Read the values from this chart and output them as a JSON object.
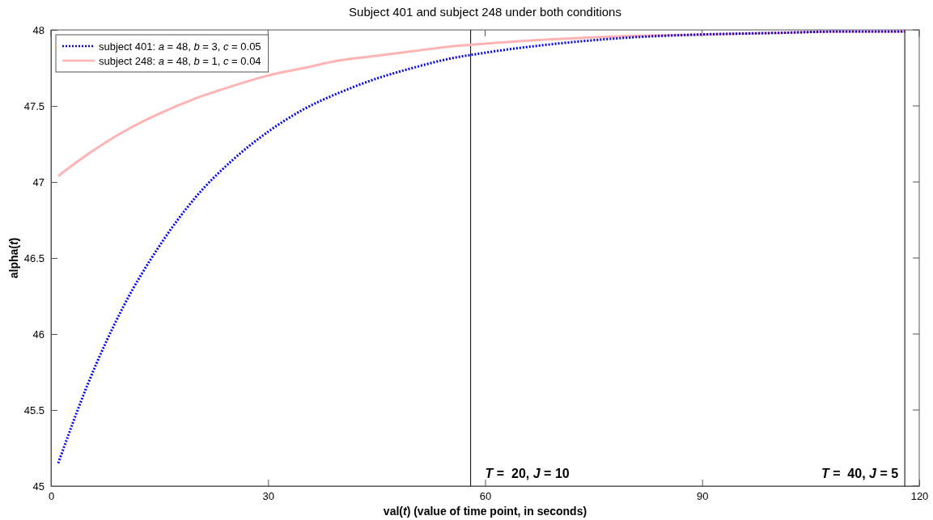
{
  "chart_data": {
    "type": "line",
    "title": "Subject 401 and subject 248 under both conditions",
    "xlabel": "val(t) (value of time point, in seconds)",
    "ylabel": "alpha(t)",
    "xlim": [
      0,
      120
    ],
    "xticks": [
      0,
      30,
      60,
      90,
      120
    ],
    "ylim": [
      45,
      48
    ],
    "yticks": [
      45,
      45.5,
      46,
      46.5,
      47,
      47.5,
      48
    ],
    "grid": false,
    "legend": "top left",
    "marker": "none",
    "ref_lines": [
      {
        "axis": "x",
        "value": 58,
        "color": "#000000"
      },
      {
        "axis": "x",
        "value": 118,
        "color": "#000000"
      }
    ],
    "annotations": [
      "T =  20, J = 10",
      "T =  40, J = 5"
    ],
    "series": [
      {
        "name": "subject 401: a = 48, b = 3, c = 0.05",
        "color": "#0000ff",
        "line_style": "dotted",
        "x": [
          1,
          5,
          10,
          15,
          20,
          25,
          30,
          35,
          40,
          45,
          50,
          55,
          60,
          70,
          80,
          90,
          100,
          110,
          118
        ],
        "values": [
          45.15,
          45.66,
          46.18,
          46.58,
          46.9,
          47.14,
          47.33,
          47.48,
          47.59,
          47.68,
          47.75,
          47.81,
          47.85,
          47.91,
          47.95,
          47.97,
          47.98,
          47.99,
          47.99
        ]
      },
      {
        "name": "subject 248: a = 48, b = 1, c = 0.04",
        "color": "#ffb3b3",
        "line_style": "solid",
        "x": [
          1,
          5,
          10,
          15,
          20,
          25,
          30,
          35,
          40,
          45,
          50,
          55,
          60,
          70,
          80,
          90,
          100,
          110,
          118
        ],
        "values": [
          47.04,
          47.18,
          47.33,
          47.45,
          47.55,
          47.63,
          47.7,
          47.75,
          47.8,
          47.83,
          47.86,
          47.89,
          47.91,
          47.94,
          47.96,
          47.97,
          47.98,
          47.99,
          47.99
        ]
      }
    ]
  }
}
